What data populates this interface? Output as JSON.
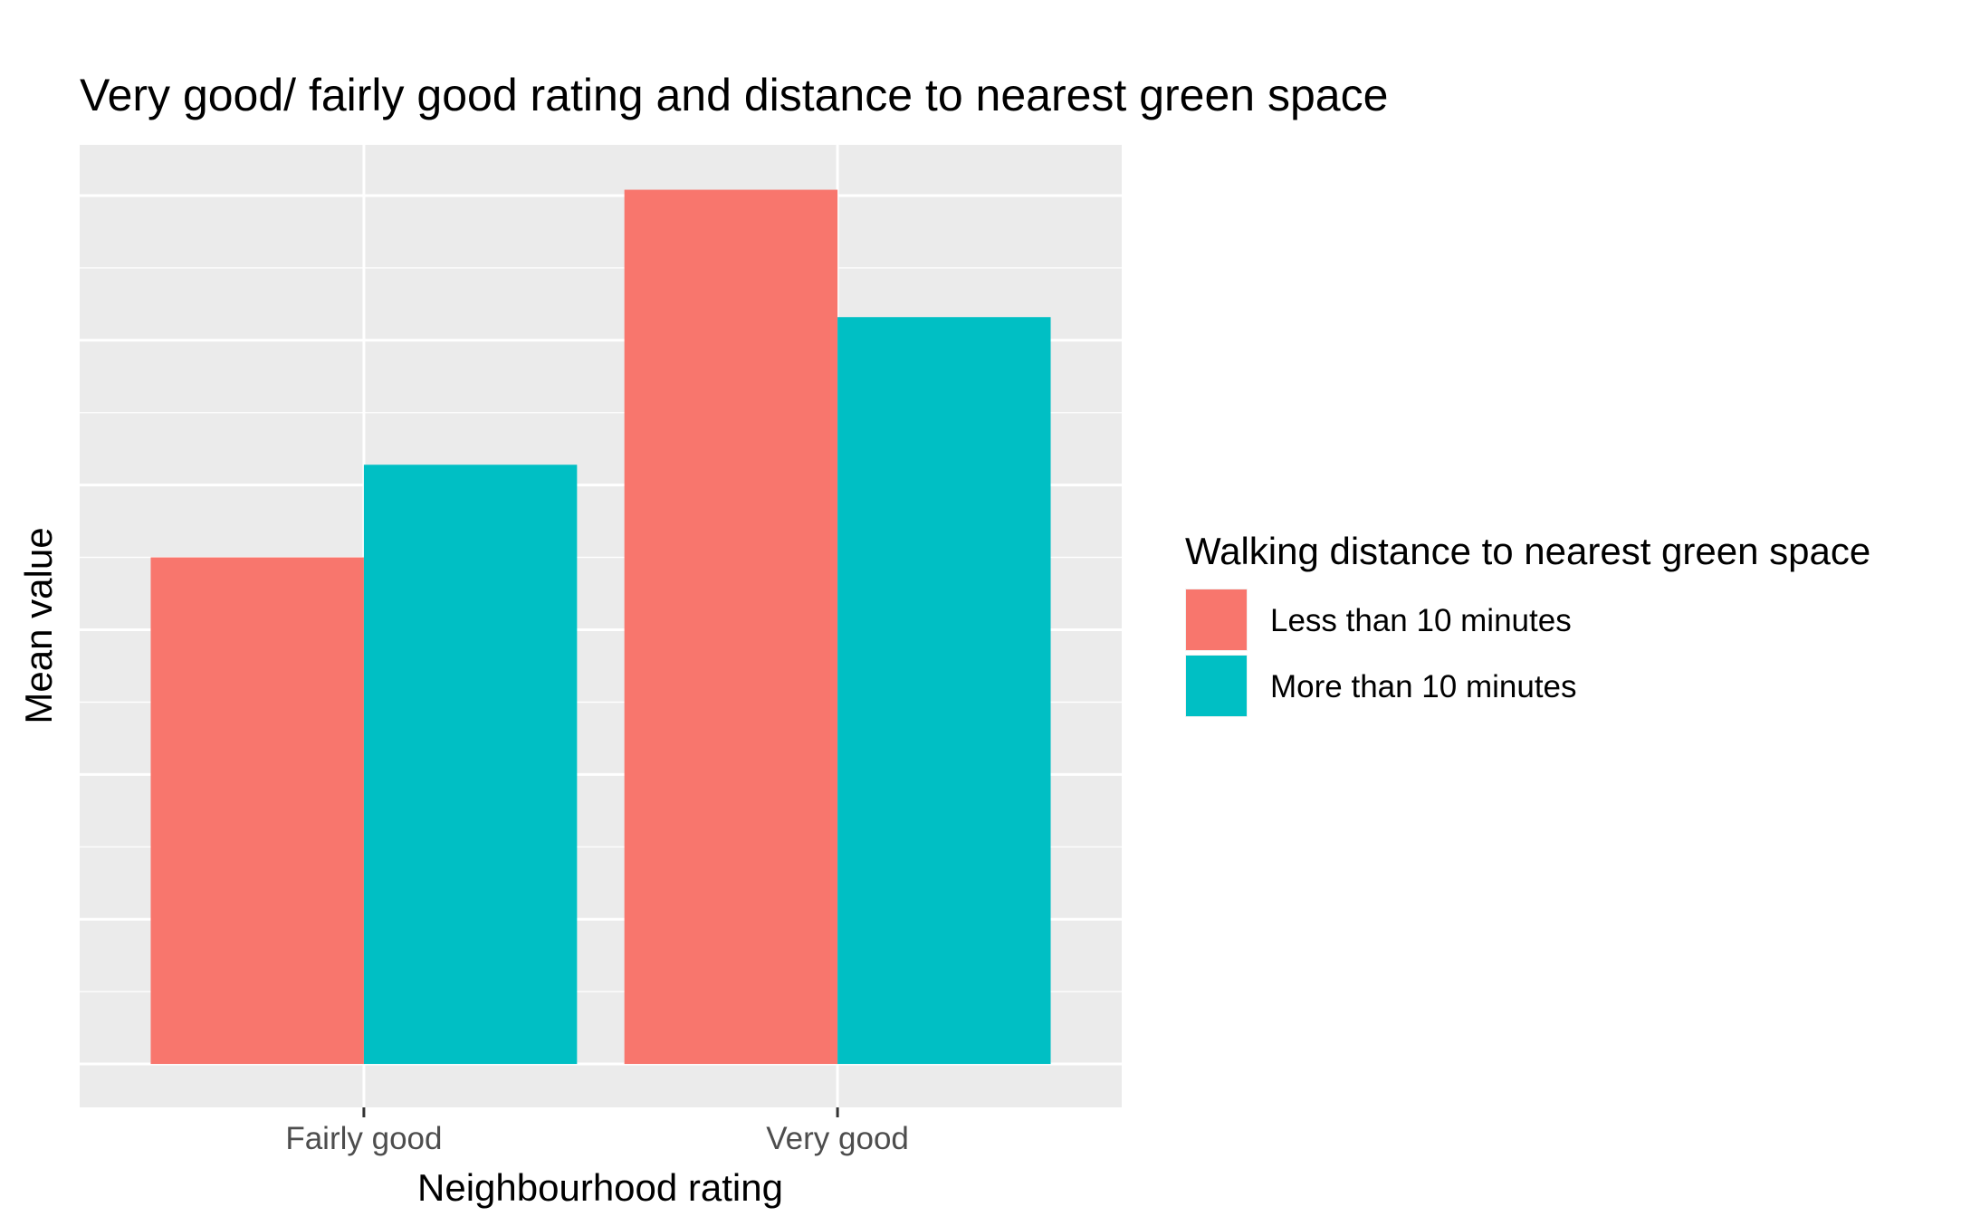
{
  "chart_data": {
    "type": "bar",
    "title": "Very good/ fairly good rating and distance to nearest green space",
    "xlabel": "Neighbourhood rating",
    "ylabel": "Mean value",
    "categories": [
      "Fairly good",
      "Very good"
    ],
    "series": [
      {
        "name": "Less than 10 minutes",
        "color": "#F8766D",
        "values": [
          3.5,
          6.04
        ]
      },
      {
        "name": "More than 10 minutes",
        "color": "#00BFC4",
        "values": [
          4.14,
          5.16
        ]
      }
    ],
    "ylim": [
      -0.3,
      6.35
    ],
    "y_gridlines": [
      0,
      1,
      2,
      3,
      4,
      5,
      6
    ],
    "y_tick_labels_shown": false,
    "legend": {
      "title": "Walking distance to nearest green space",
      "position": "right"
    },
    "grid": true,
    "panel_background": "#EBEBEB",
    "gridline_color": "#FFFFFF"
  }
}
